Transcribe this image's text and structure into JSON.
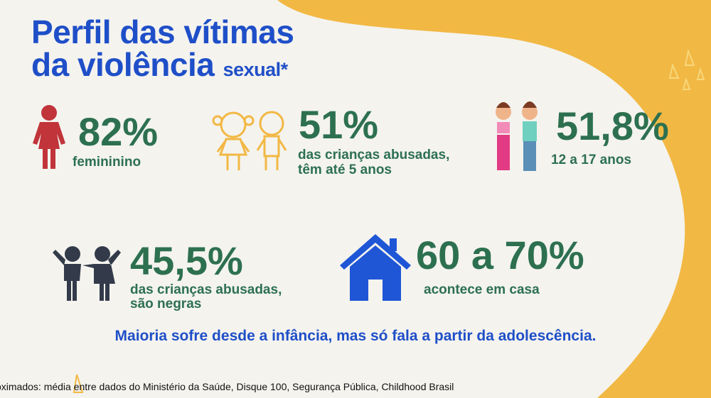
{
  "colors": {
    "background": "#f4f3ee",
    "accent_yellow": "#f2b844",
    "title_blue": "#1f4fc8",
    "stat_green": "#2d7050",
    "female_red": "#c0343a"
  },
  "title": {
    "line1": "Perfil das vítimas",
    "line2": "da violência",
    "line2_small": "sexual*"
  },
  "stats": [
    {
      "icon": "female-figure-icon",
      "value": "82%",
      "label": "femininino"
    },
    {
      "icon": "children-outline-icon",
      "value": "51%",
      "label_line1": "das crianças abusadas,",
      "label_line2": "têm até 5 anos"
    },
    {
      "icon": "teenagers-icon",
      "value": "51,8%",
      "label": "12 a 17 anos"
    },
    {
      "icon": "children-silhouette-icon",
      "value": "45,5%",
      "label_line1": "das crianças abusadas,",
      "label_line2": "são negras"
    },
    {
      "icon": "house-icon",
      "value": "60 a 70%",
      "label": "acontece em casa"
    }
  ],
  "note": "Maioria sofre desde a infância, mas só fala a partir da adolescência.",
  "source": "oximados: média entre dados do Ministério da Saúde, Disque 100, Segurança Pública, Childhood Brasil"
}
